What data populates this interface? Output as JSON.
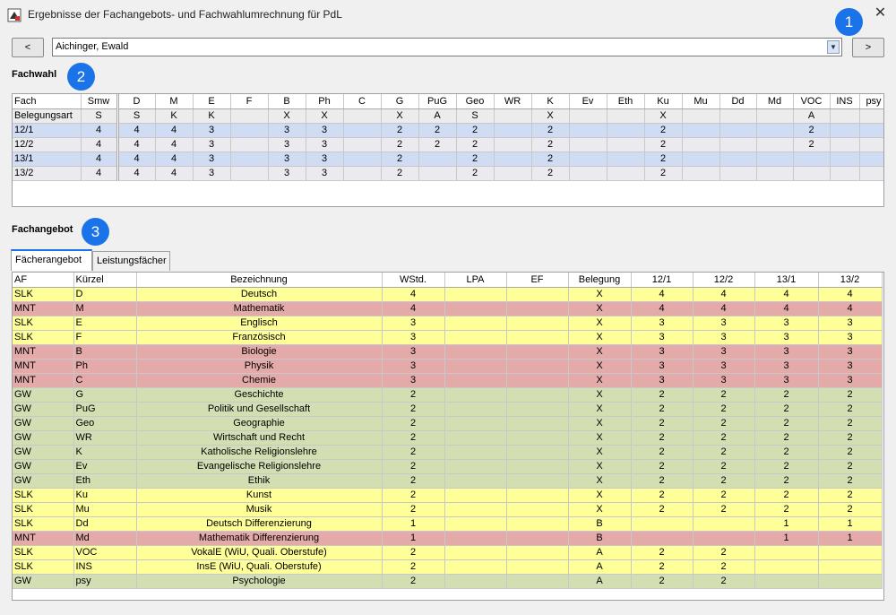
{
  "window": {
    "title": "Ergebnisse der Fachangebots- und Fachwahlumrechnung für PdL",
    "close_glyph": "✕"
  },
  "markers": [
    "1",
    "2",
    "3"
  ],
  "nav": {
    "prev_label": "<",
    "next_label": ">",
    "student_selected": "Aichinger, Ewald"
  },
  "fachwahl": {
    "label": "Fachwahl",
    "columns": [
      "Fach",
      "Smw",
      "D",
      "M",
      "E",
      "F",
      "B",
      "Ph",
      "C",
      "G",
      "PuG",
      "Geo",
      "WR",
      "K",
      "Ev",
      "Eth",
      "Ku",
      "Mu",
      "Dd",
      "Md",
      "VOC",
      "INS",
      "psy"
    ],
    "rows": [
      {
        "name": "Belegungsart",
        "cells": [
          "S",
          "S",
          "K",
          "K",
          "",
          "X",
          "X",
          "",
          "X",
          "A",
          "S",
          "",
          "X",
          "",
          "",
          "X",
          "",
          "",
          "",
          "A",
          "",
          ""
        ],
        "highlight": false
      },
      {
        "name": "12/1",
        "cells": [
          "4",
          "4",
          "4",
          "3",
          "",
          "3",
          "3",
          "",
          "2",
          "2",
          "2",
          "",
          "2",
          "",
          "",
          "2",
          "",
          "",
          "",
          "2",
          "",
          ""
        ],
        "highlight": true
      },
      {
        "name": "12/2",
        "cells": [
          "4",
          "4",
          "4",
          "3",
          "",
          "3",
          "3",
          "",
          "2",
          "2",
          "2",
          "",
          "2",
          "",
          "",
          "2",
          "",
          "",
          "",
          "2",
          "",
          ""
        ],
        "highlight": false
      },
      {
        "name": "13/1",
        "cells": [
          "4",
          "4",
          "4",
          "3",
          "",
          "3",
          "3",
          "",
          "2",
          "",
          "2",
          "",
          "2",
          "",
          "",
          "2",
          "",
          "",
          "",
          "",
          "",
          ""
        ],
        "highlight": true
      },
      {
        "name": "13/2",
        "cells": [
          "4",
          "4",
          "4",
          "3",
          "",
          "3",
          "3",
          "",
          "2",
          "",
          "2",
          "",
          "2",
          "",
          "",
          "2",
          "",
          "",
          "",
          "",
          "",
          ""
        ],
        "highlight": false
      }
    ]
  },
  "fachangebot": {
    "label": "Fachangebot",
    "tabs": [
      "Fächerangebot",
      "Leistungsfächer"
    ],
    "columns": [
      "AF",
      "Kürzel",
      "Bezeichnung",
      "WStd.",
      "LPA",
      "EF",
      "Belegung",
      "12/1",
      "12/2",
      "13/1",
      "13/2"
    ],
    "rows": [
      {
        "af": "SLK",
        "kuerzel": "D",
        "bez": "Deutsch",
        "wstd": "4",
        "lpa": "",
        "ef": "",
        "bel": "X",
        "s1": "4",
        "s2": "4",
        "s3": "4",
        "s4": "4",
        "color": "yellow"
      },
      {
        "af": "MNT",
        "kuerzel": "M",
        "bez": "Mathematik",
        "wstd": "4",
        "lpa": "",
        "ef": "",
        "bel": "X",
        "s1": "4",
        "s2": "4",
        "s3": "4",
        "s4": "4",
        "color": "red"
      },
      {
        "af": "SLK",
        "kuerzel": "E",
        "bez": "Englisch",
        "wstd": "3",
        "lpa": "",
        "ef": "",
        "bel": "X",
        "s1": "3",
        "s2": "3",
        "s3": "3",
        "s4": "3",
        "color": "yellow"
      },
      {
        "af": "SLK",
        "kuerzel": "F",
        "bez": "Französisch",
        "wstd": "3",
        "lpa": "",
        "ef": "",
        "bel": "X",
        "s1": "3",
        "s2": "3",
        "s3": "3",
        "s4": "3",
        "color": "yellow"
      },
      {
        "af": "MNT",
        "kuerzel": "B",
        "bez": "Biologie",
        "wstd": "3",
        "lpa": "",
        "ef": "",
        "bel": "X",
        "s1": "3",
        "s2": "3",
        "s3": "3",
        "s4": "3",
        "color": "red"
      },
      {
        "af": "MNT",
        "kuerzel": "Ph",
        "bez": "Physik",
        "wstd": "3",
        "lpa": "",
        "ef": "",
        "bel": "X",
        "s1": "3",
        "s2": "3",
        "s3": "3",
        "s4": "3",
        "color": "red"
      },
      {
        "af": "MNT",
        "kuerzel": "C",
        "bez": "Chemie",
        "wstd": "3",
        "lpa": "",
        "ef": "",
        "bel": "X",
        "s1": "3",
        "s2": "3",
        "s3": "3",
        "s4": "3",
        "color": "red"
      },
      {
        "af": "GW",
        "kuerzel": "G",
        "bez": "Geschichte",
        "wstd": "2",
        "lpa": "",
        "ef": "",
        "bel": "X",
        "s1": "2",
        "s2": "2",
        "s3": "2",
        "s4": "2",
        "color": "green"
      },
      {
        "af": "GW",
        "kuerzel": "PuG",
        "bez": "Politik und Gesellschaft",
        "wstd": "2",
        "lpa": "",
        "ef": "",
        "bel": "X",
        "s1": "2",
        "s2": "2",
        "s3": "2",
        "s4": "2",
        "color": "green"
      },
      {
        "af": "GW",
        "kuerzel": "Geo",
        "bez": "Geographie",
        "wstd": "2",
        "lpa": "",
        "ef": "",
        "bel": "X",
        "s1": "2",
        "s2": "2",
        "s3": "2",
        "s4": "2",
        "color": "green"
      },
      {
        "af": "GW",
        "kuerzel": "WR",
        "bez": "Wirtschaft und Recht",
        "wstd": "2",
        "lpa": "",
        "ef": "",
        "bel": "X",
        "s1": "2",
        "s2": "2",
        "s3": "2",
        "s4": "2",
        "color": "green"
      },
      {
        "af": "GW",
        "kuerzel": "K",
        "bez": "Katholische Religionslehre",
        "wstd": "2",
        "lpa": "",
        "ef": "",
        "bel": "X",
        "s1": "2",
        "s2": "2",
        "s3": "2",
        "s4": "2",
        "color": "green"
      },
      {
        "af": "GW",
        "kuerzel": "Ev",
        "bez": "Evangelische Religionslehre",
        "wstd": "2",
        "lpa": "",
        "ef": "",
        "bel": "X",
        "s1": "2",
        "s2": "2",
        "s3": "2",
        "s4": "2",
        "color": "green"
      },
      {
        "af": "GW",
        "kuerzel": "Eth",
        "bez": "Ethik",
        "wstd": "2",
        "lpa": "",
        "ef": "",
        "bel": "X",
        "s1": "2",
        "s2": "2",
        "s3": "2",
        "s4": "2",
        "color": "green"
      },
      {
        "af": "SLK",
        "kuerzel": "Ku",
        "bez": "Kunst",
        "wstd": "2",
        "lpa": "",
        "ef": "",
        "bel": "X",
        "s1": "2",
        "s2": "2",
        "s3": "2",
        "s4": "2",
        "color": "yellow"
      },
      {
        "af": "SLK",
        "kuerzel": "Mu",
        "bez": "Musik",
        "wstd": "2",
        "lpa": "",
        "ef": "",
        "bel": "X",
        "s1": "2",
        "s2": "2",
        "s3": "2",
        "s4": "2",
        "color": "yellow"
      },
      {
        "af": "SLK",
        "kuerzel": "Dd",
        "bez": "Deutsch Differenzierung",
        "wstd": "1",
        "lpa": "",
        "ef": "",
        "bel": "B",
        "s1": "",
        "s2": "",
        "s3": "1",
        "s4": "1",
        "color": "yellow"
      },
      {
        "af": "MNT",
        "kuerzel": "Md",
        "bez": "Mathematik Differenzierung",
        "wstd": "1",
        "lpa": "",
        "ef": "",
        "bel": "B",
        "s1": "",
        "s2": "",
        "s3": "1",
        "s4": "1",
        "color": "red"
      },
      {
        "af": "SLK",
        "kuerzel": "VOC",
        "bez": "VokalE (WiU, Quali. Oberstufe)",
        "wstd": "2",
        "lpa": "",
        "ef": "",
        "bel": "A",
        "s1": "2",
        "s2": "2",
        "s3": "",
        "s4": "",
        "color": "yellow"
      },
      {
        "af": "SLK",
        "kuerzel": "INS",
        "bez": "InsE (WiU, Quali. Oberstufe)",
        "wstd": "2",
        "lpa": "",
        "ef": "",
        "bel": "A",
        "s1": "2",
        "s2": "2",
        "s3": "",
        "s4": "",
        "color": "yellow"
      },
      {
        "af": "GW",
        "kuerzel": "psy",
        "bez": "Psychologie",
        "wstd": "2",
        "lpa": "",
        "ef": "",
        "bel": "A",
        "s1": "2",
        "s2": "2",
        "s3": "",
        "s4": "",
        "color": "green"
      }
    ]
  },
  "colors": {
    "yellow": "#ffff99",
    "red": "#e4aaaa",
    "green": "#d3dfb3",
    "highlight": "#cfdcf3",
    "accent": "#1a73e8"
  }
}
